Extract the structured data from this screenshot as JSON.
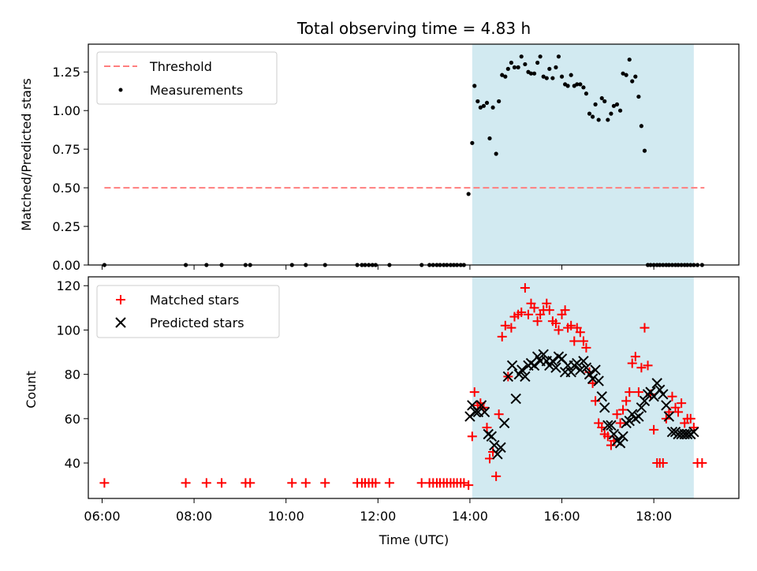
{
  "title": "Total observing time = 4.83 h",
  "colors": {
    "shade": "#add8e6",
    "threshold": "#ff7f7f",
    "measure": "#000000",
    "matched": "#ff0000",
    "predicted": "#000000"
  },
  "legend_top": {
    "threshold": "Threshold",
    "measurements": "Measurements"
  },
  "legend_bottom": {
    "matched": "Matched stars",
    "predicted": "Predicted stars"
  },
  "chart_data": [
    {
      "type": "scatter",
      "ylabel": "Matched/Predicted stars",
      "xlabel": "",
      "xlim": [
        5.7,
        19.85
      ],
      "ylim": [
        0,
        1.43
      ],
      "yticks": [
        0.0,
        0.25,
        0.5,
        0.75,
        1.0,
        1.25
      ],
      "ytick_labels": [
        "0.00",
        "0.25",
        "0.50",
        "0.75",
        "1.00",
        "1.25"
      ],
      "legend": "top-left",
      "shaded_span": [
        14.05,
        18.87
      ],
      "threshold": {
        "name": "Threshold",
        "y": 0.5,
        "x": [
          6.05,
          19.1
        ]
      },
      "series": [
        {
          "name": "Measurements",
          "x": [
            6.05,
            7.82,
            8.27,
            8.6,
            9.12,
            9.22,
            10.13,
            10.43,
            10.85,
            11.55,
            11.65,
            11.72,
            11.8,
            11.88,
            11.95,
            12.25,
            12.95,
            13.12,
            13.2,
            13.28,
            13.35,
            13.43,
            13.5,
            13.58,
            13.65,
            13.72,
            13.8,
            13.87,
            13.97,
            14.05,
            14.1,
            14.17,
            14.23,
            14.3,
            14.37,
            14.43,
            14.5,
            14.57,
            14.63,
            14.7,
            14.77,
            14.83,
            14.9,
            14.97,
            15.05,
            15.12,
            15.2,
            15.27,
            15.33,
            15.4,
            15.47,
            15.53,
            15.6,
            15.67,
            15.73,
            15.8,
            15.87,
            15.93,
            16.0,
            16.07,
            16.13,
            16.2,
            16.27,
            16.33,
            16.4,
            16.47,
            16.53,
            16.6,
            16.67,
            16.73,
            16.8,
            16.87,
            16.93,
            17.0,
            17.07,
            17.13,
            17.2,
            17.27,
            17.33,
            17.4,
            17.47,
            17.53,
            17.6,
            17.67,
            17.73,
            17.8,
            17.87,
            17.93,
            18.0,
            18.07,
            18.13,
            18.2,
            18.27,
            18.33,
            18.4,
            18.47,
            18.53,
            18.6,
            18.67,
            18.73,
            18.8,
            18.87,
            18.95,
            19.05
          ],
          "y": [
            0,
            0,
            0,
            0,
            0,
            0,
            0,
            0,
            0,
            0,
            0,
            0,
            0,
            0,
            0,
            0,
            0,
            0,
            0,
            0,
            0,
            0,
            0,
            0,
            0,
            0,
            0,
            0,
            0.46,
            0.79,
            1.16,
            1.06,
            1.02,
            1.03,
            1.05,
            0.82,
            1.02,
            0.72,
            1.06,
            1.23,
            1.22,
            1.27,
            1.31,
            1.28,
            1.28,
            1.35,
            1.3,
            1.25,
            1.24,
            1.24,
            1.31,
            1.35,
            1.22,
            1.21,
            1.27,
            1.21,
            1.28,
            1.35,
            1.22,
            1.17,
            1.16,
            1.23,
            1.16,
            1.17,
            1.17,
            1.15,
            1.11,
            0.98,
            0.96,
            1.04,
            0.94,
            1.08,
            1.06,
            0.94,
            0.98,
            1.03,
            1.04,
            1.0,
            1.24,
            1.23,
            1.33,
            1.19,
            1.22,
            1.09,
            0.9,
            0.74,
            0,
            0,
            0,
            0,
            0,
            0,
            0,
            0,
            0,
            0,
            0,
            0,
            0,
            0,
            0,
            0,
            0,
            0
          ]
        }
      ]
    },
    {
      "type": "scatter",
      "ylabel": "Count",
      "xlabel": "Time (UTC)",
      "xlim": [
        5.7,
        19.85
      ],
      "ylim": [
        24,
        124
      ],
      "yticks": [
        40,
        60,
        80,
        100,
        120
      ],
      "xticks": [
        6,
        8,
        10,
        12,
        14,
        16,
        18
      ],
      "xtick_labels": [
        "06:00",
        "08:00",
        "10:00",
        "12:00",
        "14:00",
        "16:00",
        "18:00"
      ],
      "legend": "top-left",
      "shaded_span": [
        14.05,
        18.87
      ],
      "series": [
        {
          "name": "Matched stars",
          "marker": "+",
          "x": [
            6.05,
            7.82,
            8.27,
            8.6,
            9.12,
            9.22,
            10.13,
            10.43,
            10.85,
            11.55,
            11.65,
            11.72,
            11.8,
            11.88,
            11.95,
            12.25,
            12.95,
            13.12,
            13.2,
            13.28,
            13.35,
            13.43,
            13.5,
            13.58,
            13.65,
            13.72,
            13.8,
            13.87,
            13.97,
            14.05,
            14.1,
            14.17,
            14.23,
            14.3,
            14.37,
            14.43,
            14.5,
            14.57,
            14.63,
            14.7,
            14.77,
            14.83,
            14.9,
            14.97,
            15.05,
            15.12,
            15.2,
            15.27,
            15.33,
            15.4,
            15.47,
            15.53,
            15.6,
            15.67,
            15.73,
            15.8,
            15.87,
            15.93,
            16.0,
            16.07,
            16.13,
            16.2,
            16.27,
            16.33,
            16.4,
            16.47,
            16.53,
            16.6,
            16.67,
            16.73,
            16.8,
            16.87,
            16.93,
            17.0,
            17.07,
            17.13,
            17.2,
            17.27,
            17.33,
            17.4,
            17.47,
            17.53,
            17.6,
            17.67,
            17.73,
            17.8,
            17.87,
            17.93,
            18.0,
            18.07,
            18.13,
            18.2,
            18.27,
            18.33,
            18.4,
            18.47,
            18.53,
            18.6,
            18.67,
            18.73,
            18.8,
            18.87,
            18.95,
            19.05
          ],
          "y": [
            31,
            31,
            31,
            31,
            31,
            31,
            31,
            31,
            31,
            31,
            31,
            31,
            31,
            31,
            31,
            31,
            31,
            31,
            31,
            31,
            31,
            31,
            31,
            31,
            31,
            31,
            31,
            31,
            30,
            52,
            72,
            66,
            67,
            65,
            56,
            42,
            45,
            34,
            62,
            97,
            102,
            79,
            101,
            106,
            107,
            108,
            119,
            107,
            112,
            110,
            104,
            107,
            109,
            112,
            109,
            104,
            103,
            100,
            107,
            109,
            101,
            102,
            95,
            101,
            99,
            95,
            92,
            81,
            76,
            68,
            58,
            56,
            53,
            52,
            48,
            50,
            62,
            58,
            64,
            68,
            72,
            85,
            88,
            72,
            83,
            101,
            84,
            71,
            55,
            40,
            40,
            40,
            60,
            63,
            70,
            65,
            63,
            67,
            58,
            60,
            60,
            56,
            40,
            40
          ],
          "predicted_note": ""
        },
        {
          "name": "Predicted stars",
          "marker": "x",
          "x": [
            14.0,
            14.05,
            14.12,
            14.18,
            14.25,
            14.32,
            14.4,
            14.47,
            14.53,
            14.6,
            14.67,
            14.75,
            14.83,
            14.92,
            15.0,
            15.07,
            15.13,
            15.2,
            15.27,
            15.33,
            15.4,
            15.47,
            15.53,
            15.6,
            15.67,
            15.73,
            15.8,
            15.87,
            15.93,
            16.0,
            16.07,
            16.13,
            16.2,
            16.27,
            16.33,
            16.4,
            16.47,
            16.53,
            16.6,
            16.67,
            16.73,
            16.8,
            16.87,
            16.93,
            17.0,
            17.07,
            17.13,
            17.2,
            17.27,
            17.33,
            17.4,
            17.47,
            17.53,
            17.6,
            17.67,
            17.73,
            17.8,
            17.87,
            17.93,
            18.0,
            18.07,
            18.13,
            18.2,
            18.27,
            18.33,
            18.4,
            18.47,
            18.53,
            18.6,
            18.67,
            18.73,
            18.8,
            18.87
          ],
          "y": [
            61,
            66,
            63,
            63,
            66,
            63,
            53,
            52,
            48,
            44,
            47,
            58,
            79,
            84,
            69,
            80,
            82,
            79,
            84,
            85,
            84,
            88,
            86,
            89,
            86,
            84,
            86,
            83,
            88,
            87,
            81,
            84,
            81,
            84,
            85,
            82,
            86,
            83,
            80,
            78,
            82,
            77,
            70,
            65,
            57,
            57,
            53,
            50,
            49,
            52,
            58,
            59,
            62,
            60,
            61,
            65,
            68,
            71,
            72,
            70,
            76,
            73,
            71,
            66,
            61,
            54,
            54,
            53,
            53,
            53,
            53,
            53,
            54
          ]
        }
      ]
    }
  ]
}
